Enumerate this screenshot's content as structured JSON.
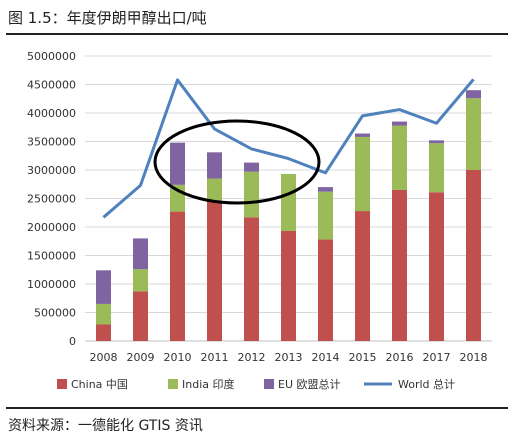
{
  "figure": {
    "title": "图 1.5：年度伊朗甲醇出口/吨",
    "source": "资料来源：一德能化  GTIS 资讯"
  },
  "chart_data": {
    "type": "bar",
    "stacked": true,
    "categories": [
      "2008",
      "2009",
      "2010",
      "2011",
      "2012",
      "2013",
      "2014",
      "2015",
      "2016",
      "2017",
      "2018"
    ],
    "series": [
      {
        "name": "China 中国",
        "color": "#C0504D",
        "values": [
          290000,
          870000,
          2270000,
          2470000,
          2170000,
          1930000,
          1780000,
          2280000,
          2650000,
          2610000,
          3000000
        ]
      },
      {
        "name": "India 印度",
        "color": "#9BBB59",
        "values": [
          360000,
          390000,
          470000,
          380000,
          800000,
          1000000,
          840000,
          1300000,
          1130000,
          860000,
          1260000
        ]
      },
      {
        "name": "EU 欧盟总计",
        "color": "#8064A2",
        "values": [
          590000,
          540000,
          740000,
          460000,
          160000,
          0,
          80000,
          60000,
          70000,
          50000,
          140000
        ]
      }
    ],
    "line_series": {
      "name": "World 总计",
      "color": "#4F81BD",
      "values": [
        2170000,
        2730000,
        4580000,
        3720000,
        3370000,
        3200000,
        2950000,
        3950000,
        4060000,
        3820000,
        4590000
      ]
    },
    "yticks": [
      "0",
      "500000",
      "1000000",
      "1500000",
      "2000000",
      "2500000",
      "3000000",
      "3500000",
      "4000000",
      "4500000",
      "5000000"
    ],
    "ylim": [
      0,
      5000000
    ],
    "grid": true,
    "legend_position": "bottom",
    "annotation": "ellipse around 2010–2013"
  }
}
